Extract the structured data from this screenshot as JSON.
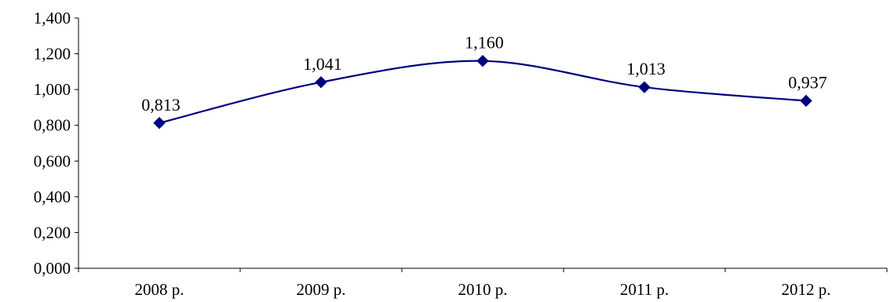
{
  "chart_data": {
    "type": "line",
    "title": "",
    "xlabel": "",
    "ylabel": "",
    "categories": [
      "2008 р.",
      "2009 р.",
      "2010 р.",
      "2011 р.",
      "2012 р."
    ],
    "series": [
      {
        "values": [
          0.813,
          1.041,
          1.16,
          1.013,
          0.937
        ],
        "color": "#000080",
        "marker": "diamond",
        "smooth": true
      }
    ],
    "data_labels": [
      "0,813",
      "1,041",
      "1,160",
      "1,013",
      "0,937"
    ],
    "ylim": [
      0,
      1.4
    ],
    "y_ticks": [
      "0,000",
      "0,200",
      "0,400",
      "0,600",
      "0,800",
      "1,000",
      "1,200",
      "1,400"
    ],
    "grid": false,
    "legend": "none"
  }
}
